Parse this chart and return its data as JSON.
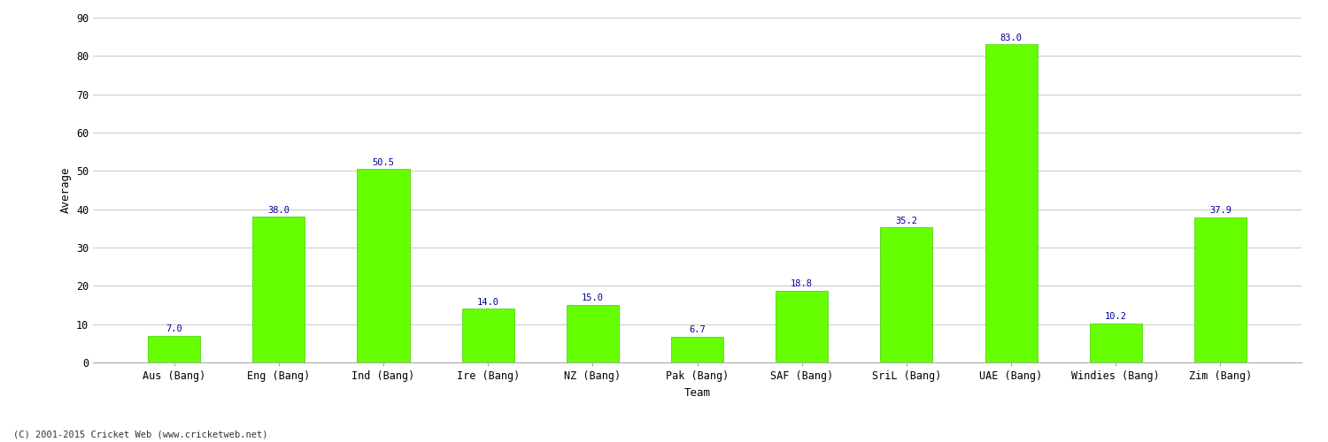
{
  "categories": [
    "Aus (Bang)",
    "Eng (Bang)",
    "Ind (Bang)",
    "Ire (Bang)",
    "NZ (Bang)",
    "Pak (Bang)",
    "SAF (Bang)",
    "SriL (Bang)",
    "UAE (Bang)",
    "Windies (Bang)",
    "Zim (Bang)"
  ],
  "values": [
    7.0,
    38.0,
    50.5,
    14.0,
    15.0,
    6.7,
    18.8,
    35.2,
    83.0,
    10.2,
    37.9
  ],
  "bar_color": "#66ff00",
  "bar_edge_color": "#44cc00",
  "value_color": "#000099",
  "xlabel": "Team",
  "ylabel": "Average",
  "ylim": [
    0,
    90
  ],
  "yticks": [
    0,
    10,
    20,
    30,
    40,
    50,
    60,
    70,
    80,
    90
  ],
  "grid_color": "#cccccc",
  "background_color": "#ffffff",
  "fig_background_color": "#ffffff",
  "copyright": "(C) 2001-2015 Cricket Web (www.cricketweb.net)",
  "value_fontsize": 7.5,
  "axis_fontsize": 8.5,
  "label_fontsize": 9,
  "copyright_fontsize": 7.5,
  "bar_width": 0.5
}
